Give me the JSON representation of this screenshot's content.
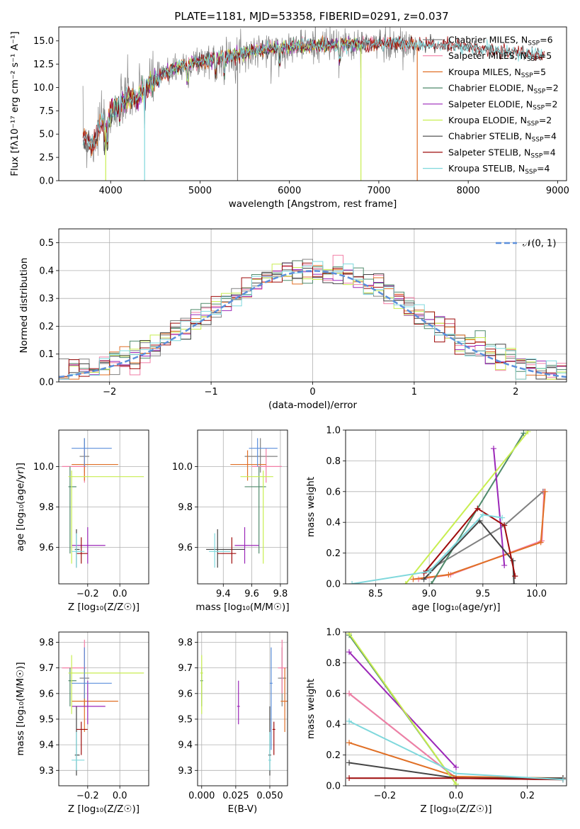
{
  "title": "PLATE=1181, MJD=53358, FIBERID=0291, z=0.037",
  "colors": {
    "chabrier_miles": "#808080",
    "salpeter_miles": "#f27ea6",
    "kroupa_miles": "#e06f25",
    "chabrier_elodie": "#4f8a6b",
    "salpeter_elodie": "#9b27b8",
    "kroupa_elodie": "#c8ee50",
    "chabrier_stelib": "#444444",
    "salpeter_stelib": "#9e0b0b",
    "kroupa_stelib": "#7fd8dc",
    "normal": "#5b8fdb",
    "grid": "#b0b0b0"
  },
  "chart_data": [
    {
      "id": "spectrum",
      "type": "line",
      "title": "PLATE=1181, MJD=53358, FIBERID=0291, z=0.037",
      "xlabel": "wavelength [Angstrom, rest frame]",
      "ylabel": "Flux [fλ10⁻¹⁷ erg cm⁻² s⁻¹ A⁻¹]",
      "xlim": [
        3420,
        9100
      ],
      "ylim": [
        0,
        16.5
      ],
      "xticks": [
        4000,
        5000,
        6000,
        7000,
        8000,
        9000
      ],
      "yticks": [
        0.0,
        2.5,
        5.0,
        7.5,
        10.0,
        12.5,
        15.0
      ],
      "grid": false,
      "legend_position": "top-right",
      "continuum": {
        "x": [
          3690,
          3800,
          3900,
          3960,
          4000,
          4100,
          4200,
          4300,
          4400,
          4500,
          4700,
          5000,
          5300,
          5600,
          5900,
          6200,
          6500,
          6800,
          7100,
          7400,
          7700,
          8000,
          8300,
          8600,
          8850
        ],
        "y": [
          4.6,
          3.8,
          6.5,
          5.5,
          7.2,
          8.2,
          8.9,
          8.8,
          10.1,
          10.8,
          12.0,
          12.8,
          13.3,
          13.9,
          14.3,
          14.5,
          14.6,
          14.6,
          14.7,
          14.6,
          14.5,
          14.3,
          14.0,
          13.7,
          13.4
        ]
      },
      "series": [
        {
          "name": "Chabrier MILES, N_SSP=6",
          "color_key": "chabrier_miles",
          "x_range": [
            3690,
            7430
          ]
        },
        {
          "name": "Salpeter MILES, N_SSP=5",
          "color_key": "salpeter_miles",
          "x_range": [
            3690,
            7430
          ]
        },
        {
          "name": "Kroupa MILES, N_SSP=5",
          "color_key": "kroupa_miles",
          "x_range": [
            3690,
            7430
          ]
        },
        {
          "name": "Chabrier ELODIE, N_SSP=2",
          "color_key": "chabrier_elodie",
          "x_range": [
            3900,
            6800
          ]
        },
        {
          "name": "Salpeter ELODIE, N_SSP=2",
          "color_key": "salpeter_elodie",
          "x_range": [
            3900,
            6800
          ]
        },
        {
          "name": "Kroupa ELODIE, N_SSP=2",
          "color_key": "kroupa_elodie",
          "x_range": [
            3900,
            6800
          ]
        },
        {
          "name": "Chabrier STELIB, N_SSP=4",
          "color_key": "chabrier_stelib",
          "x_range": [
            3690,
            8850
          ]
        },
        {
          "name": "Salpeter STELIB, N_SSP=4",
          "color_key": "salpeter_stelib",
          "x_range": [
            3690,
            8850
          ]
        },
        {
          "name": "Kroupa STELIB, N_SSP=4",
          "color_key": "kroupa_stelib",
          "x_range": [
            3690,
            8850
          ]
        }
      ]
    },
    {
      "id": "residuals",
      "type": "line",
      "xlabel": "(data-model)/error",
      "ylabel": "Normed distribution",
      "xlim": [
        -2.5,
        2.5
      ],
      "ylim": [
        0,
        0.55
      ],
      "xticks": [
        -2,
        -1,
        0,
        1,
        2
      ],
      "yticks": [
        0.0,
        0.1,
        0.2,
        0.3,
        0.4,
        0.5
      ],
      "grid": true,
      "legend_position": "top-right",
      "legend": "𝒩(0, 1)",
      "bins_start": -2.5,
      "bin_width": 0.1
    },
    {
      "id": "z_age",
      "type": "scatter",
      "xlabel": "Z [log₁₀(Z/Z☉)]",
      "ylabel": "age  [log₁₀(age/yr)]",
      "xlim": [
        -0.38,
        0.18
      ],
      "ylim": [
        9.42,
        10.18
      ],
      "xticks": [
        -0.2,
        0.0
      ],
      "yticks": [
        9.6,
        9.8,
        10.0
      ],
      "grid": true
    },
    {
      "id": "mass_age",
      "type": "scatter",
      "xlabel": "mass [log₁₀(M/M☉)]",
      "xlim": [
        9.22,
        9.85
      ],
      "ylim": [
        9.42,
        10.18
      ],
      "xticks": [
        9.4,
        9.6,
        9.8
      ],
      "yticks": [
        9.6,
        9.8,
        10.0
      ],
      "grid": true
    },
    {
      "id": "weight_age",
      "type": "line",
      "xlabel": "age  [log₁₀(age/yr)]",
      "ylabel": "mass weight",
      "xlim": [
        8.22,
        10.28
      ],
      "ylim": [
        0,
        1
      ],
      "xticks": [
        8.5,
        9.0,
        9.5,
        10.0
      ],
      "yticks": [
        0.0,
        0.2,
        0.4,
        0.6,
        0.8,
        1.0
      ],
      "grid": true
    },
    {
      "id": "z_mass",
      "type": "scatter",
      "xlabel": "Z [log₁₀(Z/Z☉)]",
      "ylabel": "mass [log₁₀(M/M☉)]",
      "xlim": [
        -0.38,
        0.18
      ],
      "ylim": [
        9.24,
        9.84
      ],
      "xticks": [
        -0.2,
        0.0
      ],
      "yticks": [
        9.3,
        9.4,
        9.5,
        9.6,
        9.7,
        9.8
      ],
      "grid": true
    },
    {
      "id": "ebv_mass",
      "type": "scatter",
      "xlabel": "E(B-V)",
      "xlim": [
        -0.003,
        0.063
      ],
      "ylim": [
        9.24,
        9.84
      ],
      "xticks": [
        0.0,
        0.025,
        0.05
      ],
      "xtick_labels": [
        "0.000",
        "0.025",
        "0.050"
      ],
      "yticks": [
        9.3,
        9.4,
        9.5,
        9.6,
        9.7,
        9.8
      ],
      "grid": true
    },
    {
      "id": "weight_z",
      "type": "line",
      "xlabel": "Z [log₁₀(Z/Z☉)]",
      "ylabel": "mass weight",
      "xlim": [
        -0.31,
        0.31
      ],
      "ylim": [
        0,
        1
      ],
      "xticks": [
        -0.2,
        0.0,
        0.2
      ],
      "yticks": [
        0.0,
        0.2,
        0.4,
        0.6,
        0.8,
        1.0
      ],
      "grid": true
    }
  ],
  "models": [
    {
      "color_key": "chabrier_miles",
      "age": 10.05,
      "age_lo": 9.97,
      "age_hi": 10.14,
      "Z": -0.22,
      "Z_lo": -0.25,
      "Z_hi": -0.19,
      "mass": 9.66,
      "mass_lo": 9.55,
      "mass_hi": 9.78,
      "ebv": 0.059,
      "ebv_lo": 0.056,
      "ebv_hi": 0.062,
      "weights": [
        [
          8.95,
          0.07
        ],
        [
          9.7,
          0.38
        ],
        [
          10.06,
          0.6
        ]
      ],
      "zweights": [
        [
          -0.3,
          0.6
        ],
        [
          0.0,
          0.05
        ],
        [
          0.3,
          0.04
        ]
      ]
    },
    {
      "color_key": "salpeter_miles",
      "age": 10.0,
      "age_lo": 9.92,
      "age_hi": 10.09,
      "Z": -0.22,
      "Z_lo": -0.36,
      "Z_hi": -0.21,
      "mass": 9.7,
      "mass_lo": 9.6,
      "mass_hi": 9.81,
      "ebv": 0.059,
      "ebv_lo": 0.056,
      "ebv_hi": 0.062,
      "weights": [
        [
          8.9,
          0.03
        ],
        [
          9.2,
          0.06
        ],
        [
          10.05,
          0.28
        ],
        [
          10.07,
          0.6
        ]
      ],
      "zweights": [
        [
          -0.3,
          0.6
        ],
        [
          0.0,
          0.05
        ],
        [
          0.3,
          0.05
        ]
      ]
    },
    {
      "color_key": "kroupa_miles",
      "age": 10.01,
      "age_lo": 9.93,
      "age_hi": 10.08,
      "Z": -0.22,
      "Z_lo": -0.3,
      "Z_hi": -0.01,
      "mass": 9.57,
      "mass_lo": 9.45,
      "mass_hi": 9.7,
      "ebv": 0.061,
      "ebv_lo": 0.058,
      "ebv_hi": 0.064,
      "weights": [
        [
          8.85,
          0.03
        ],
        [
          9.18,
          0.06
        ],
        [
          10.04,
          0.27
        ],
        [
          10.08,
          0.6
        ]
      ],
      "zweights": [
        [
          -0.3,
          0.28
        ],
        [
          0.0,
          0.06
        ],
        [
          0.3,
          0.05
        ]
      ]
    },
    {
      "color_key": "chabrier_elodie",
      "age": 9.9,
      "age_lo": 9.57,
      "age_hi": 10.0,
      "Z": -0.31,
      "Z_lo": -0.32,
      "Z_hi": -0.27,
      "mass": 9.65,
      "mass_lo": 9.55,
      "mass_hi": 9.7,
      "ebv": 0.0,
      "ebv_lo": -0.001,
      "ebv_hi": 0.001,
      "weights": [
        [
          9.02,
          0.0
        ],
        [
          9.88,
          0.98
        ]
      ],
      "zweights": [
        [
          -0.3,
          0.98
        ],
        [
          0.0,
          0.01
        ]
      ]
    },
    {
      "color_key": "salpeter_elodie",
      "age": 9.61,
      "age_lo": 9.52,
      "age_hi": 9.7,
      "Z": -0.2,
      "Z_lo": -0.3,
      "Z_hi": -0.09,
      "mass": 9.55,
      "mass_lo": 9.48,
      "mass_hi": 9.65,
      "ebv": 0.027,
      "ebv_lo": 0.026,
      "ebv_hi": 0.028,
      "weights": [
        [
          9.6,
          0.88
        ],
        [
          9.7,
          0.12
        ]
      ],
      "zweights": [
        [
          -0.3,
          0.87
        ],
        [
          0.0,
          0.12
        ]
      ]
    },
    {
      "color_key": "kroupa_elodie",
      "age": 9.95,
      "age_lo": 9.52,
      "age_hi": 9.98,
      "Z": -0.3,
      "Z_lo": -0.32,
      "Z_hi": 0.15,
      "mass": 9.68,
      "mass_lo": 9.52,
      "mass_hi": 9.75,
      "ebv": 0.0,
      "ebv_lo": -0.001,
      "ebv_hi": 0.001,
      "weights": [
        [
          8.78,
          0.0
        ],
        [
          9.92,
          0.99
        ]
      ],
      "zweights": [
        [
          -0.3,
          0.99
        ],
        [
          0.0,
          0.01
        ]
      ]
    },
    {
      "color_key": "chabrier_stelib",
      "age": 9.59,
      "age_lo": 9.5,
      "age_hi": 9.69,
      "Z": -0.27,
      "Z_lo": -0.28,
      "Z_hi": -0.25,
      "mass": 9.36,
      "mass_lo": 9.28,
      "mass_hi": 9.55,
      "ebv": 0.05,
      "ebv_lo": 0.049,
      "ebv_hi": 0.051,
      "weights": [
        [
          8.95,
          0.03
        ],
        [
          9.47,
          0.41
        ],
        [
          9.78,
          0.15
        ],
        [
          9.79,
          0.0
        ]
      ],
      "zweights": [
        [
          -0.3,
          0.15
        ],
        [
          0.0,
          0.05
        ],
        [
          0.3,
          0.05
        ]
      ]
    },
    {
      "color_key": "salpeter_stelib",
      "age": 9.57,
      "age_lo": 9.52,
      "age_hi": 9.65,
      "Z": -0.24,
      "Z_lo": -0.27,
      "Z_hi": -0.2,
      "mass": 9.46,
      "mass_lo": 9.36,
      "mass_hi": 9.49,
      "ebv": 0.053,
      "ebv_lo": 0.052,
      "ebv_hi": 0.054,
      "weights": [
        [
          8.95,
          0.07
        ],
        [
          9.45,
          0.49
        ],
        [
          9.7,
          0.38
        ],
        [
          9.8,
          0.05
        ]
      ],
      "zweights": [
        [
          -0.3,
          0.05
        ],
        [
          0.0,
          0.05
        ],
        [
          0.3,
          0.04
        ]
      ]
    },
    {
      "color_key": "kroupa_stelib",
      "age": 9.58,
      "age_lo": 9.5,
      "age_hi": 9.67,
      "Z": -0.27,
      "Z_lo": -0.3,
      "Z_hi": -0.22,
      "mass": 9.34,
      "mass_lo": 9.3,
      "mass_hi": 9.45,
      "ebv": 0.05,
      "ebv_lo": 0.049,
      "ebv_hi": 0.051,
      "weights": [
        [
          8.28,
          0.0
        ],
        [
          9.0,
          0.08
        ],
        [
          9.5,
          0.45
        ],
        [
          9.68,
          0.43
        ]
      ],
      "zweights": [
        [
          -0.3,
          0.42
        ],
        [
          0.0,
          0.08
        ],
        [
          0.3,
          0.04
        ]
      ]
    }
  ],
  "z_age_blue_extra": {
    "age": 10.09,
    "Z": -0.22,
    "Z_lo": -0.3,
    "Z_hi": -0.05,
    "mass": 9.64,
    "mass_lo": 9.58,
    "mass_hi": 9.78,
    "age_lo": 10.0,
    "age_hi": 10.14,
    "ebv": 0.051,
    "ebv_lo": 0.05,
    "ebv_hi": 0.052,
    "mass_ebv_lo": 9.38,
    "mass_ebv_hi": 9.78
  }
}
